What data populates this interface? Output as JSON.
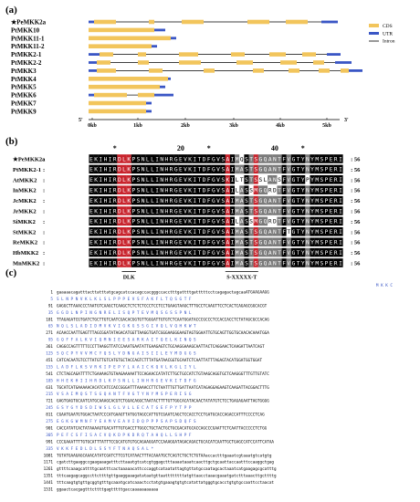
{
  "panel_a": {
    "label": "(a)",
    "genes": [
      {
        "name": "PeMKK2a",
        "star": true,
        "segs": [
          [
            "u",
            0.0,
            0.02
          ],
          [
            "c",
            0.02,
            0.1
          ],
          [
            "i",
            0.1,
            0.22
          ],
          [
            "c",
            0.22,
            0.24
          ],
          [
            "i",
            0.24,
            0.34
          ],
          [
            "c",
            0.34,
            0.42
          ],
          [
            "i",
            0.42,
            0.58
          ],
          [
            "c",
            0.58,
            0.66
          ],
          [
            "i",
            0.66,
            0.72
          ],
          [
            "c",
            0.72,
            0.8
          ],
          [
            "i",
            0.8,
            0.85
          ],
          [
            "u",
            0.85,
            0.91
          ]
        ]
      },
      {
        "name": "PtMKK10",
        "star": false,
        "segs": [
          [
            "c",
            0.0,
            0.24
          ],
          [
            "u",
            0.24,
            0.28
          ]
        ]
      },
      {
        "name": "PtMKK11-1",
        "star": false,
        "segs": [
          [
            "c",
            0.0,
            0.3
          ],
          [
            "u",
            0.3,
            0.32
          ]
        ]
      },
      {
        "name": "PtMKK11-2",
        "star": false,
        "segs": [
          [
            "c",
            0.0,
            0.23
          ],
          [
            "u",
            0.23,
            0.25
          ]
        ]
      },
      {
        "name": "PtMKK2-1",
        "star": false,
        "segs": [
          [
            "u",
            0.0,
            0.04
          ],
          [
            "c",
            0.04,
            0.09
          ],
          [
            "i",
            0.09,
            0.18
          ],
          [
            "c",
            0.18,
            0.21
          ],
          [
            "i",
            0.21,
            0.33
          ],
          [
            "c",
            0.33,
            0.4
          ],
          [
            "i",
            0.4,
            0.52
          ],
          [
            "c",
            0.52,
            0.57
          ],
          [
            "i",
            0.57,
            0.66
          ],
          [
            "c",
            0.66,
            0.72
          ],
          [
            "i",
            0.72,
            0.78
          ],
          [
            "c",
            0.78,
            0.83
          ],
          [
            "i",
            0.83,
            0.87
          ],
          [
            "u",
            0.87,
            0.92
          ]
        ]
      },
      {
        "name": "PtMKK2-2",
        "star": false,
        "segs": [
          [
            "u",
            0.0,
            0.03
          ],
          [
            "c",
            0.03,
            0.08
          ],
          [
            "i",
            0.08,
            0.18
          ],
          [
            "c",
            0.18,
            0.22
          ],
          [
            "i",
            0.22,
            0.33
          ],
          [
            "c",
            0.33,
            0.41
          ],
          [
            "i",
            0.41,
            0.54
          ],
          [
            "c",
            0.54,
            0.6
          ],
          [
            "i",
            0.6,
            0.7
          ],
          [
            "c",
            0.7,
            0.76
          ],
          [
            "i",
            0.76,
            0.82
          ],
          [
            "c",
            0.82,
            0.86
          ],
          [
            "i",
            0.86,
            0.9
          ],
          [
            "u",
            0.9,
            0.96
          ]
        ]
      },
      {
        "name": "PtMKK3",
        "star": false,
        "segs": [
          [
            "u",
            0.0,
            0.03
          ],
          [
            "c",
            0.03,
            0.1
          ],
          [
            "i",
            0.1,
            0.22
          ],
          [
            "c",
            0.22,
            0.27
          ],
          [
            "i",
            0.27,
            0.42
          ],
          [
            "c",
            0.42,
            0.46
          ],
          [
            "i",
            0.46,
            0.6
          ],
          [
            "c",
            0.6,
            0.64
          ],
          [
            "i",
            0.64,
            0.73
          ],
          [
            "c",
            0.73,
            0.77
          ],
          [
            "i",
            0.77,
            0.84
          ],
          [
            "c",
            0.84,
            0.88
          ],
          [
            "i",
            0.88,
            0.92
          ],
          [
            "c",
            0.92,
            0.95
          ],
          [
            "u",
            0.95,
            1.0
          ]
        ]
      },
      {
        "name": "PtMKK4",
        "star": false,
        "segs": [
          [
            "c",
            0.0,
            0.29
          ],
          [
            "u",
            0.29,
            0.3
          ]
        ]
      },
      {
        "name": "PtMKK5",
        "star": false,
        "segs": [
          [
            "c",
            0.0,
            0.26
          ],
          [
            "u",
            0.26,
            0.28
          ]
        ]
      },
      {
        "name": "PtMKK6",
        "star": false,
        "segs": [
          [
            "u",
            0.0,
            0.02
          ],
          [
            "c",
            0.02,
            0.14
          ],
          [
            "i",
            0.14,
            0.18
          ],
          [
            "c",
            0.18,
            0.24
          ],
          [
            "u",
            0.24,
            0.31
          ]
        ]
      },
      {
        "name": "PtMKK7",
        "star": false,
        "segs": [
          [
            "c",
            0.0,
            0.21
          ],
          [
            "u",
            0.21,
            0.23
          ]
        ]
      },
      {
        "name": "PtMKK9",
        "star": false,
        "segs": [
          [
            "c",
            0.0,
            0.21
          ],
          [
            "u",
            0.21,
            0.23
          ]
        ]
      }
    ],
    "legend": [
      {
        "label": "CDS",
        "color": "#F2C55C",
        "kind": "box"
      },
      {
        "label": "UTR",
        "color": "#3A56C5",
        "kind": "box"
      },
      {
        "label": "Intron",
        "color": "#000000",
        "kind": "line"
      }
    ],
    "axis_ticks": [
      "0kb",
      "1kb",
      "2kb",
      "3kb",
      "4kb",
      "5kb"
    ],
    "axis_end5": "5'",
    "axis_end3": "3'"
  },
  "panel_b": {
    "label": "(b)",
    "markers": [
      {
        "text": "*",
        "col": 5
      },
      {
        "text": "20",
        "col": 19
      },
      {
        "text": "*",
        "col": 25
      },
      {
        "text": "40",
        "col": 39
      },
      {
        "text": "*",
        "col": 45
      }
    ],
    "sequences": [
      {
        "name": "PeMKK2a",
        "star": true,
        "seq": "EKIHIRDLKPSNLLINHRGEVKITDFGVSAIMQSTSGQANTFVGTYNYMSPERI",
        "end": "56"
      },
      {
        "name": "PtMKK2-1",
        "star": false,
        "seq": "EKIHIRDLKPSNLLINHRGEVKITDFGVSAIMASTSGQANTFVGTYNYMSPERI",
        "end": "56"
      },
      {
        "name": "AtMKK2",
        "star": false,
        "seq": "EKIHIRDLKPSNLLINHRGEVKITDFGVSKILTSTSSLANSFVGTYPYMSPERI",
        "end": "56"
      },
      {
        "name": "InMKK2",
        "star": false,
        "seq": "EKIHIRDLKPSNLLINHRGEVKITDFGVSAILASSMGQRDTFVGTYNYMSPERI",
        "end": "56"
      },
      {
        "name": "JcMKK2",
        "star": false,
        "seq": "EKIHIRDLKPSNLLINHRGEVKITDFGVSAIMASTSGQANTFVGTYNYMSPERI",
        "end": "56"
      },
      {
        "name": "JrMKK2",
        "star": false,
        "seq": "EKIHIRDLKPSNLLINHRGEVKITDFGVSAIMASTSGQANTFVGTYNYMSPERI",
        "end": "56"
      },
      {
        "name": "SiMKK2",
        "star": false,
        "seq": "EKIHIRDLKPSNLLINHRGEVKITDFGVSAILASSMGQRDTFVGTYNYMSPERI",
        "end": "56"
      },
      {
        "name": "StMKK2",
        "star": false,
        "seq": "EKIHIRDLKPSNLLINHRGEVKITDFGVSAIMASTSGQANTFTGTYNYMSPERI",
        "end": "56"
      },
      {
        "name": "ReMKK2",
        "star": false,
        "seq": "EKIHIRDLKPSNLLINHRGEVKITDFGVSAIMASTSGQANTFVGTYNYMSPERI",
        "end": "56"
      },
      {
        "name": "HbMKK2",
        "star": false,
        "seq": "EKIHIRDLKPSNLLINHRGEVKITDFGVSAIMASTSGQANTFVGTYNYMSPERI",
        "end": "56"
      },
      {
        "name": "MnMKK2",
        "star": false,
        "seq": "EKIHIRDLKPSNLLINHRGEVKITDFGVSAIMASTSGQANTFVGTYNYMSPERI",
        "end": "56"
      }
    ],
    "motif_labels": [
      {
        "text": "DLK",
        "start": 7,
        "end": 9
      },
      {
        "text": "S-XXXXX-T",
        "start": 29,
        "end": 35
      }
    ]
  },
  "panel_c": {
    "label": "(c)",
    "lines": [
      {
        "n": "",
        "t": "M K K C",
        "k": "aa"
      },
      {
        "n": "1",
        "t": "gaaaaacagatttacttatttatgcagcatccacagccacgggccacctttgattttgatttttcctcagagactagcaaATGAAGAAGG",
        "k": "nt"
      },
      {
        "n": "5",
        "t": "S L N P N V K L K L S L P P P E V S F A K F L T Q S G T F",
        "k": "aa"
      },
      {
        "n": "91",
        "t": "GAGGCTTAAACCCTAATGTCAAGCTCAAGCTCTCTCTCCCTCCTCCTGAAGTAAGCTTTGCCTCAAGTTCCTCACTCAGAGCGGCACGT",
        "k": "nt"
      },
      {
        "n": "35",
        "t": "G G D L N P I N G N R E L I S Q P T E V M Q S G S S P N L",
        "k": "aa"
      },
      {
        "n": "181",
        "t": "TTAGAGATCGTGATCTGCTTGTCAATCGACACGGTGTTGGGATTGTGTCTCAATGGATACCCGCCCTCCACCACCTCTATAGCGCCACAG",
        "k": "nt"
      },
      {
        "n": "65",
        "t": "N Q L S L A D I D M V K V I G K G S S G I V Q L V Q H K W T",
        "k": "aa"
      },
      {
        "n": "271",
        "t": "ACAACCAATTGAGTTTAGCGGATATAGACATGGTTAAGGTGATCGGGAAGGGAAGTAGTGGAATTGTGCAGTTGGTGCAACACAAATGGA",
        "k": "nt"
      },
      {
        "n": "95",
        "t": "G Q F F A L K V I Q M N I E E S A R K A I T Q E L K I N Q S",
        "k": "aa"
      },
      {
        "n": "361",
        "t": "CAGGCCAGTTTTTCCCTTAAGGTTATCCAAATGAATATTGAAGAGTCTGCAAGGAAAGCAATTACTCAGGAACTCAAGATTAATCAGT",
        "k": "nt"
      },
      {
        "n": "125",
        "t": "S Q C P Y V V M C Y Q S L Y D N G A I S I I L E Y M D G G S",
        "k": "aa"
      },
      {
        "n": "451",
        "t": "CATCACAATGTCCTTATGTTGTCATGTGCTACCAGTCTTTATGATAACGGTGCAATCTCAATTATTTAGAGTACATGGATGGTGGAT",
        "k": "nt"
      },
      {
        "n": "155",
        "t": "L A D F L K S V R K I P E P Y L A A I C K Q V L K G L I Y L",
        "k": "aa"
      },
      {
        "n": "541",
        "t": "CTCTAGCAGATTTTCTGAAAAGTGTAAGAAAAATTCCAGAACCATATCTTGCTGCCATCTGTAAGCAGGTGCTCAAGGGTTTGTTGTATC",
        "k": "nt"
      },
      {
        "n": "185",
        "t": "H H E K H I I H R D L K P S N L L I N H R G E V K I T D F G",
        "k": "aa"
      },
      {
        "n": "631",
        "t": "TGCATCATGAAAAACACATCATCCACCGGGATTTAAAACCTTCTAATTTGTTGATTAATCATAGAGGAGAAGTCAAGATTACGGACTTTG",
        "k": "nt"
      },
      {
        "n": "215",
        "t": "V S A I M Q S T S G Q A N T F V G T Y N Y M S P E R I S G",
        "k": "aa"
      },
      {
        "n": "721",
        "t": "GAGTGAGTGCAATCATGCAAAGCACGTCTGGACAGGCTAATACTTTTGTTGGCACATACAACTATATGTCTCCTGAGAGAATTAGTGGGG",
        "k": "nt"
      },
      {
        "n": "245",
        "t": "G S Y G Y D S D I W S L G L V L L E C A T G E F P Y T P P",
        "k": "aa"
      },
      {
        "n": "811",
        "t": "CGAATGAATGTGGACTAATCCCATGAAGTTATGGTAGCCATTGTCGAATCAGCTCCACCTCCTGATGCACCAGACCATTTCCCCTCAG",
        "k": "nt"
      },
      {
        "n": "275",
        "t": "E G K G W M N F Y E A M V E A V I D Q P P P S A P S D Q F S",
        "k": "aa"
      },
      {
        "n": "901",
        "t": "CACCATATCACTATAAAAGTGACATTTGTGACCTTGGCCTGCTACTGCTGCGACATGCACCAGCCCGAATTCTCAATTACCCCCTCTGG",
        "k": "nt"
      },
      {
        "n": "305",
        "t": "P E F C S F I S A C V Q K D P K D R Q T A H Q L L S H P F",
        "k": "aa"
      },
      {
        "n": "991",
        "t": "CCCGAAATTTTGTGCATTTATTTCCGCATGTGTGCAGAAGGATCCAAAGGATAGACAGACTGCACATCAATTGCTGAGCCATCCATTCATAA",
        "k": "nt"
      },
      {
        "n": "335",
        "t": "V K K F E D L D L S S Y F T N A Q S A L *",
        "k": "aa"
      },
      {
        "n": "1081",
        "t": "TGTATGAAGAGCAAACATATCGATCTTCGTCATAACTTTACAAATGCTCAGTCTGCTCTGTAAaccactttgaaatcgtaaatgtcatgtg",
        "k": "nt"
      },
      {
        "n": "1171",
        "t": "cgatcttgaaggccgaagaaagatttcttaaatgtcatcgtggagctttaaaataaatcaacttgctgcaattaccaatttccaaggctgag",
        "k": "nt"
      },
      {
        "n": "1261",
        "t": "gttttcaaagcattttgcaatttcactaaaaacattcccaggtcataatattagtgttatgccaatagcactaaatcatgaagagcgcatttg",
        "k": "nt"
      },
      {
        "n": "1351",
        "t": "tttcaagagcaggccttcttttgttgaaggaaagatataatgttaattttttttatgttaacctaaacgaaatgatctttaaacttgcttttg",
        "k": "nt"
      },
      {
        "n": "1441",
        "t": "tttcaagtgtgttgcggtgtttgcaaatgcatcaaactcctatgtgaaagtgtgtcatattatgggtgcacctgtgtgccaattcctaacat",
        "k": "nt"
      },
      {
        "n": "1531",
        "t": "ggaactcacgagtttcttttgagtttttgaccaaaaaaaaaaa",
        "k": "nt"
      }
    ]
  }
}
